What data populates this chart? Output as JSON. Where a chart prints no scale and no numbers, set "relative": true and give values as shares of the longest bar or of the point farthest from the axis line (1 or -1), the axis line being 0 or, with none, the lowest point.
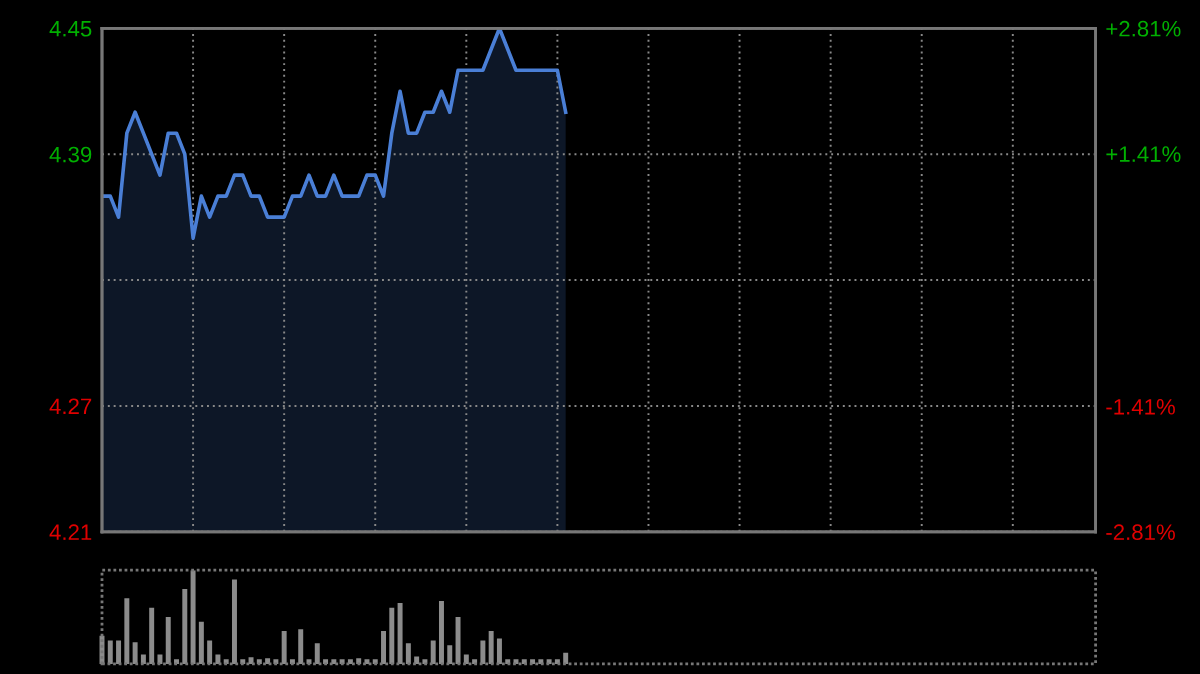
{
  "chart_data": [
    {
      "type": "area",
      "categories": [
        null,
        null,
        null,
        null,
        null,
        null,
        null,
        null,
        null,
        null,
        null,
        null,
        null,
        null,
        null,
        null,
        null,
        null,
        null,
        null,
        null,
        null,
        null,
        null,
        null,
        null,
        null,
        null,
        null,
        null,
        null,
        null,
        null,
        null,
        null,
        null,
        null,
        null,
        null,
        null,
        null,
        null,
        null,
        null,
        null,
        null,
        null,
        null,
        null,
        null,
        null,
        null,
        null,
        null,
        null,
        null,
        null,
        null,
        null,
        null,
        null,
        null,
        null,
        null,
        null,
        null,
        null,
        null,
        null,
        null,
        null,
        null,
        null,
        null,
        null,
        null,
        null,
        null,
        null,
        null,
        null,
        null,
        null,
        null,
        null,
        null,
        null,
        null,
        null,
        null,
        null,
        null,
        null,
        null,
        null,
        null,
        null,
        null,
        null,
        null,
        null,
        null,
        null,
        null,
        null,
        null,
        null,
        null,
        null,
        null,
        null,
        null,
        null,
        null,
        null,
        null,
        null,
        null,
        null,
        null,
        null
      ],
      "series": [
        {
          "color": "#4a7fd6",
          "values": [
            4.37,
            4.37,
            4.36,
            4.4,
            4.41,
            4.4,
            4.39,
            4.38,
            4.4,
            4.4,
            4.39,
            4.35,
            4.37,
            4.36,
            4.37,
            4.37,
            4.38,
            4.38,
            4.37,
            4.37,
            4.36,
            4.36,
            4.36,
            4.37,
            4.37,
            4.38,
            4.37,
            4.37,
            4.38,
            4.37,
            4.37,
            4.37,
            4.38,
            4.38,
            4.37,
            4.4,
            4.42,
            4.4,
            4.4,
            4.41,
            4.41,
            4.42,
            4.41,
            4.43,
            4.43,
            4.43,
            4.43,
            4.44,
            4.45,
            4.44,
            4.43,
            4.43,
            4.43,
            4.43,
            4.43,
            4.43,
            4.41,
            null,
            null,
            null,
            null,
            null,
            null,
            null,
            null,
            null,
            null,
            null,
            null,
            null,
            null,
            null,
            null,
            null,
            null,
            null,
            null,
            null,
            null,
            null,
            null,
            null,
            null,
            null,
            null,
            null,
            null,
            null,
            null,
            null,
            null,
            null,
            null,
            null,
            null,
            null,
            null,
            null,
            null,
            null,
            null,
            null,
            null,
            null,
            null,
            null,
            null,
            null,
            null,
            null,
            null,
            null,
            null,
            null,
            null,
            null,
            null,
            null,
            null,
            null,
            null
          ]
        }
      ],
      "ylim": [
        4.21,
        4.45
      ],
      "yticks": [
        4.21,
        4.27,
        {
          "value": 4.33,
          "label": null
        },
        4.39,
        4.45
      ],
      "y2lim": [
        -2.81,
        2.81
      ],
      "y2ticks": [
        {
          "value": -2.81,
          "label": "-2.81%"
        },
        {
          "value": -1.41,
          "label": "-1.41%"
        },
        {
          "value": 0,
          "label": null
        },
        {
          "value": 1.41,
          "label": "+1.41%"
        },
        {
          "value": 2.81,
          "label": "+2.81%"
        }
      ],
      "grid": true,
      "tick_labels": "y"
    },
    {
      "type": "bar",
      "relative": true,
      "color": "#8c8c8c",
      "categories": [
        null,
        null,
        null,
        null,
        null,
        null,
        null,
        null,
        null,
        null,
        null,
        null,
        null,
        null,
        null,
        null,
        null,
        null,
        null,
        null,
        null,
        null,
        null,
        null,
        null,
        null,
        null,
        null,
        null,
        null,
        null,
        null,
        null,
        null,
        null,
        null,
        null,
        null,
        null,
        null,
        null,
        null,
        null,
        null,
        null,
        null,
        null,
        null,
        null,
        null,
        null,
        null,
        null,
        null,
        null,
        null,
        null
      ],
      "values": [
        0.3,
        0.25,
        0.25,
        0.7,
        0.23,
        0.1,
        0.6,
        0.1,
        0.5,
        0.05,
        0.8,
        1.0,
        0.45,
        0.25,
        0.1,
        0.05,
        0.9,
        0.05,
        0.07,
        0.05,
        0.06,
        0.05,
        0.35,
        0.05,
        0.37,
        0.05,
        0.22,
        0.05,
        0.05,
        0.05,
        0.05,
        0.06,
        0.05,
        0.05,
        0.35,
        0.6,
        0.65,
        0.22,
        0.08,
        0.05,
        0.25,
        0.67,
        0.2,
        0.5,
        0.1,
        0.05,
        0.25,
        0.35,
        0.27,
        0.05,
        0.05,
        0.05,
        0.05,
        0.05,
        0.05,
        0.05,
        0.12
      ]
    }
  ]
}
